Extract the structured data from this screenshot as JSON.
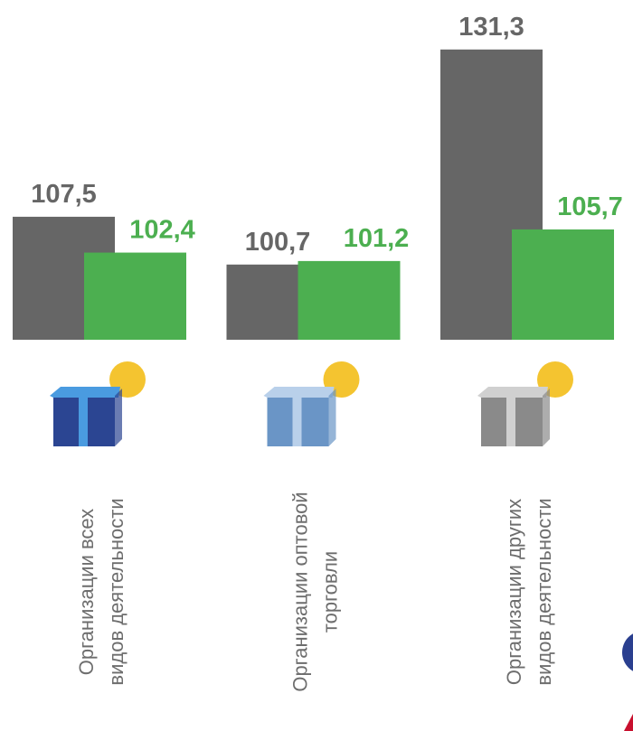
{
  "chart_data": {
    "type": "bar",
    "categories": [
      "Организации всех\nвидов деятельности",
      "Организации оптовой\nторговли",
      "Организации других\nвидов деятельности"
    ],
    "series": [
      {
        "color": "#666666",
        "values": [
          107.5,
          100.7,
          131.3
        ],
        "value_labels": [
          "107,5",
          "100,7",
          "131,3"
        ]
      },
      {
        "color": "#4caf50",
        "values": [
          102.4,
          101.2,
          105.7
        ],
        "value_labels": [
          "102,4",
          "101,2",
          "105,7"
        ]
      }
    ],
    "ylim": [
      90,
      135
    ]
  }
}
